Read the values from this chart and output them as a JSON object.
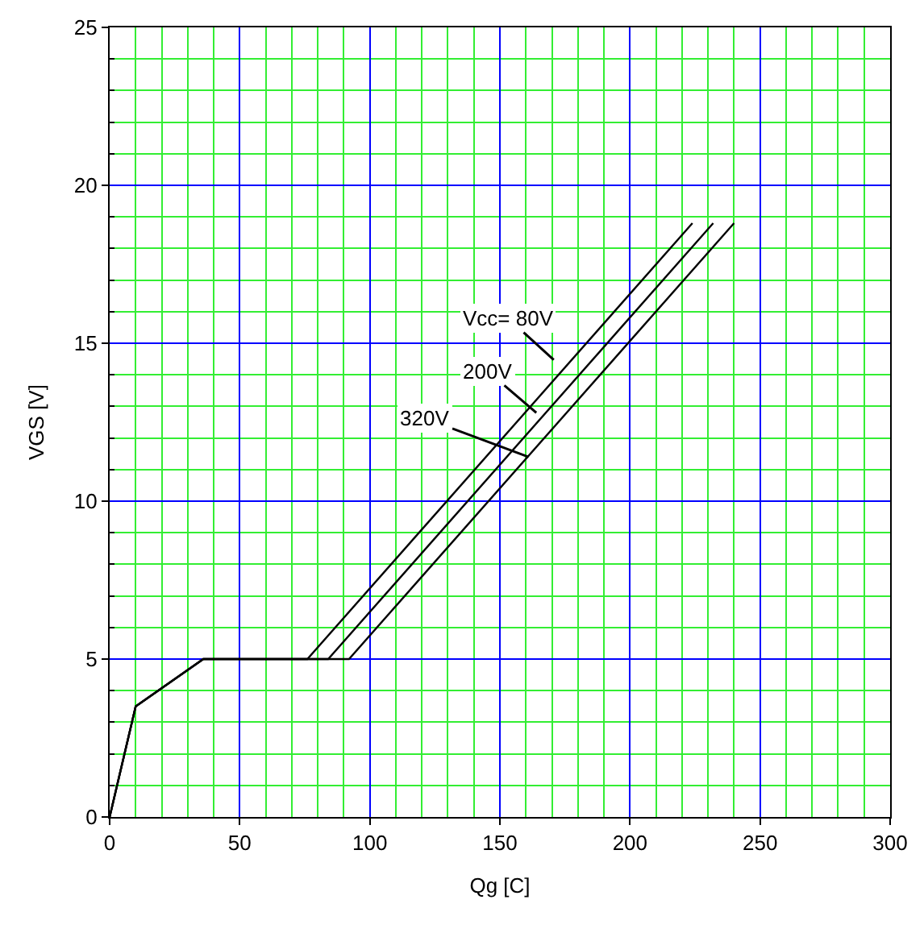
{
  "chart_data": {
    "type": "line",
    "xlabel": "Qg [C]",
    "ylabel": "VGS [V]",
    "xlim": [
      0,
      300
    ],
    "ylim": [
      0,
      25
    ],
    "xticks": [
      0,
      {
        "value": 10,
        "label": null
      },
      {
        "value": 20,
        "label": null
      },
      {
        "value": 30,
        "label": null
      },
      {
        "value": 40,
        "label": null
      },
      50,
      {
        "value": 60,
        "label": null
      },
      {
        "value": 70,
        "label": null
      },
      {
        "value": 80,
        "label": null
      },
      {
        "value": 90,
        "label": null
      },
      100,
      {
        "value": 110,
        "label": null
      },
      {
        "value": 120,
        "label": null
      },
      {
        "value": 130,
        "label": null
      },
      {
        "value": 140,
        "label": null
      },
      150,
      {
        "value": 160,
        "label": null
      },
      {
        "value": 170,
        "label": null
      },
      {
        "value": 180,
        "label": null
      },
      {
        "value": 190,
        "label": null
      },
      200,
      {
        "value": 210,
        "label": null
      },
      {
        "value": 220,
        "label": null
      },
      {
        "value": 230,
        "label": null
      },
      {
        "value": 240,
        "label": null
      },
      250,
      {
        "value": 260,
        "label": null
      },
      {
        "value": 270,
        "label": null
      },
      {
        "value": 280,
        "label": null
      },
      {
        "value": 290,
        "label": null
      },
      300
    ],
    "yticks": [
      0,
      {
        "value": 1,
        "label": null
      },
      {
        "value": 2,
        "label": null
      },
      {
        "value": 3,
        "label": null
      },
      {
        "value": 4,
        "label": null
      },
      5,
      {
        "value": 6,
        "label": null
      },
      {
        "value": 7,
        "label": null
      },
      {
        "value": 8,
        "label": null
      },
      {
        "value": 9,
        "label": null
      },
      10,
      {
        "value": 11,
        "label": null
      },
      {
        "value": 12,
        "label": null
      },
      {
        "value": 13,
        "label": null
      },
      {
        "value": 14,
        "label": null
      },
      15,
      {
        "value": 16,
        "label": null
      },
      {
        "value": 17,
        "label": null
      },
      {
        "value": 18,
        "label": null
      },
      {
        "value": 19,
        "label": null
      },
      20,
      {
        "value": 21,
        "label": null
      },
      {
        "value": 22,
        "label": null
      },
      {
        "value": 23,
        "label": null
      },
      {
        "value": 24,
        "label": null
      },
      25
    ],
    "grid": true,
    "marker": "none",
    "line_style": "solid",
    "series": [
      {
        "color": "#000000",
        "x": [
          0,
          10,
          36,
          76,
          224
        ],
        "values": [
          0,
          3.5,
          5,
          5,
          18.8
        ]
      },
      {
        "color": "#000000",
        "x": [
          0,
          10,
          36,
          84,
          232
        ],
        "values": [
          0,
          3.5,
          5,
          5,
          18.8
        ]
      },
      {
        "color": "#000000",
        "x": [
          0,
          10,
          36,
          92,
          240
        ],
        "values": [
          0,
          3.5,
          5,
          5,
          18.8
        ]
      }
    ],
    "annotations": [
      "Vcc= 80V",
      {
        "text": "200V",
        "x": 164,
        "y": 12.8
      },
      {
        "text": "320V",
        "x": 161,
        "y": 11.4
      }
    ]
  }
}
